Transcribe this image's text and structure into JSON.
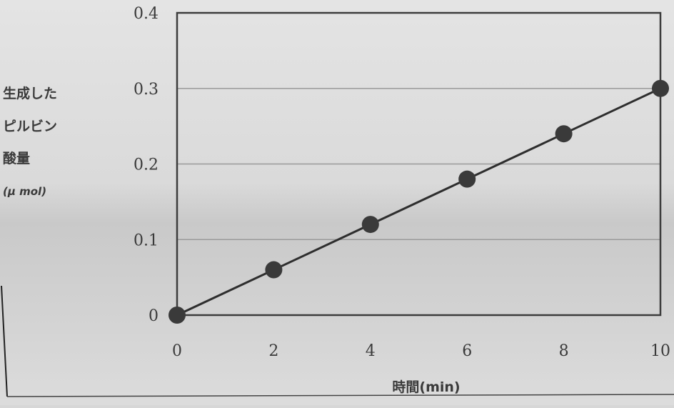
{
  "chart_data": {
    "type": "line",
    "xlabel": "時間(min)",
    "ylabel_lines": [
      "生成した",
      "ピルビン",
      "酸量",
      "(μ mol)"
    ],
    "xlim": [
      0,
      10
    ],
    "ylim": [
      0,
      0.4
    ],
    "x_ticks": [
      "0",
      "2",
      "4",
      "6",
      "8",
      "10"
    ],
    "y_ticks": [
      "0",
      "0.1",
      "0.2",
      "0.3",
      "0.4"
    ],
    "grid": "horizontal",
    "series": [
      {
        "x": [
          0,
          2,
          4,
          6,
          8,
          10
        ],
        "y": [
          0,
          0.06,
          0.12,
          0.18,
          0.24,
          0.3
        ]
      }
    ],
    "colors": {
      "line": "#2e2e2e",
      "marker": "#3a3a3a",
      "grid": "#9a9a9a",
      "frame": "#3c3c3c",
      "background": "#d7d7d7"
    }
  }
}
